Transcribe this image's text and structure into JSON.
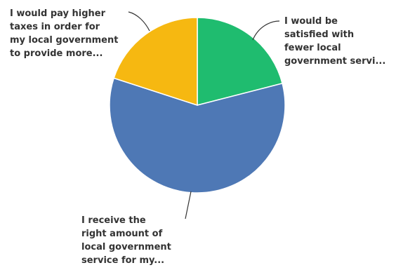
{
  "chart_data": {
    "type": "pie",
    "title": "",
    "start_angle_deg": 0,
    "direction": "clockwise",
    "slices": [
      {
        "label_lines": [
          "I would be",
          "satisfied with",
          "fewer local",
          "government servi..."
        ],
        "value": 21,
        "color": "#1fbc6f"
      },
      {
        "label_lines": [
          "I receive the",
          "right amount of",
          "local government",
          "service for my..."
        ],
        "value": 59,
        "color": "#4e78b5"
      },
      {
        "label_lines": [
          "I would pay higher",
          "taxes in order for",
          "my local government",
          "to provide more..."
        ],
        "value": 20,
        "color": "#f6b811"
      }
    ]
  }
}
